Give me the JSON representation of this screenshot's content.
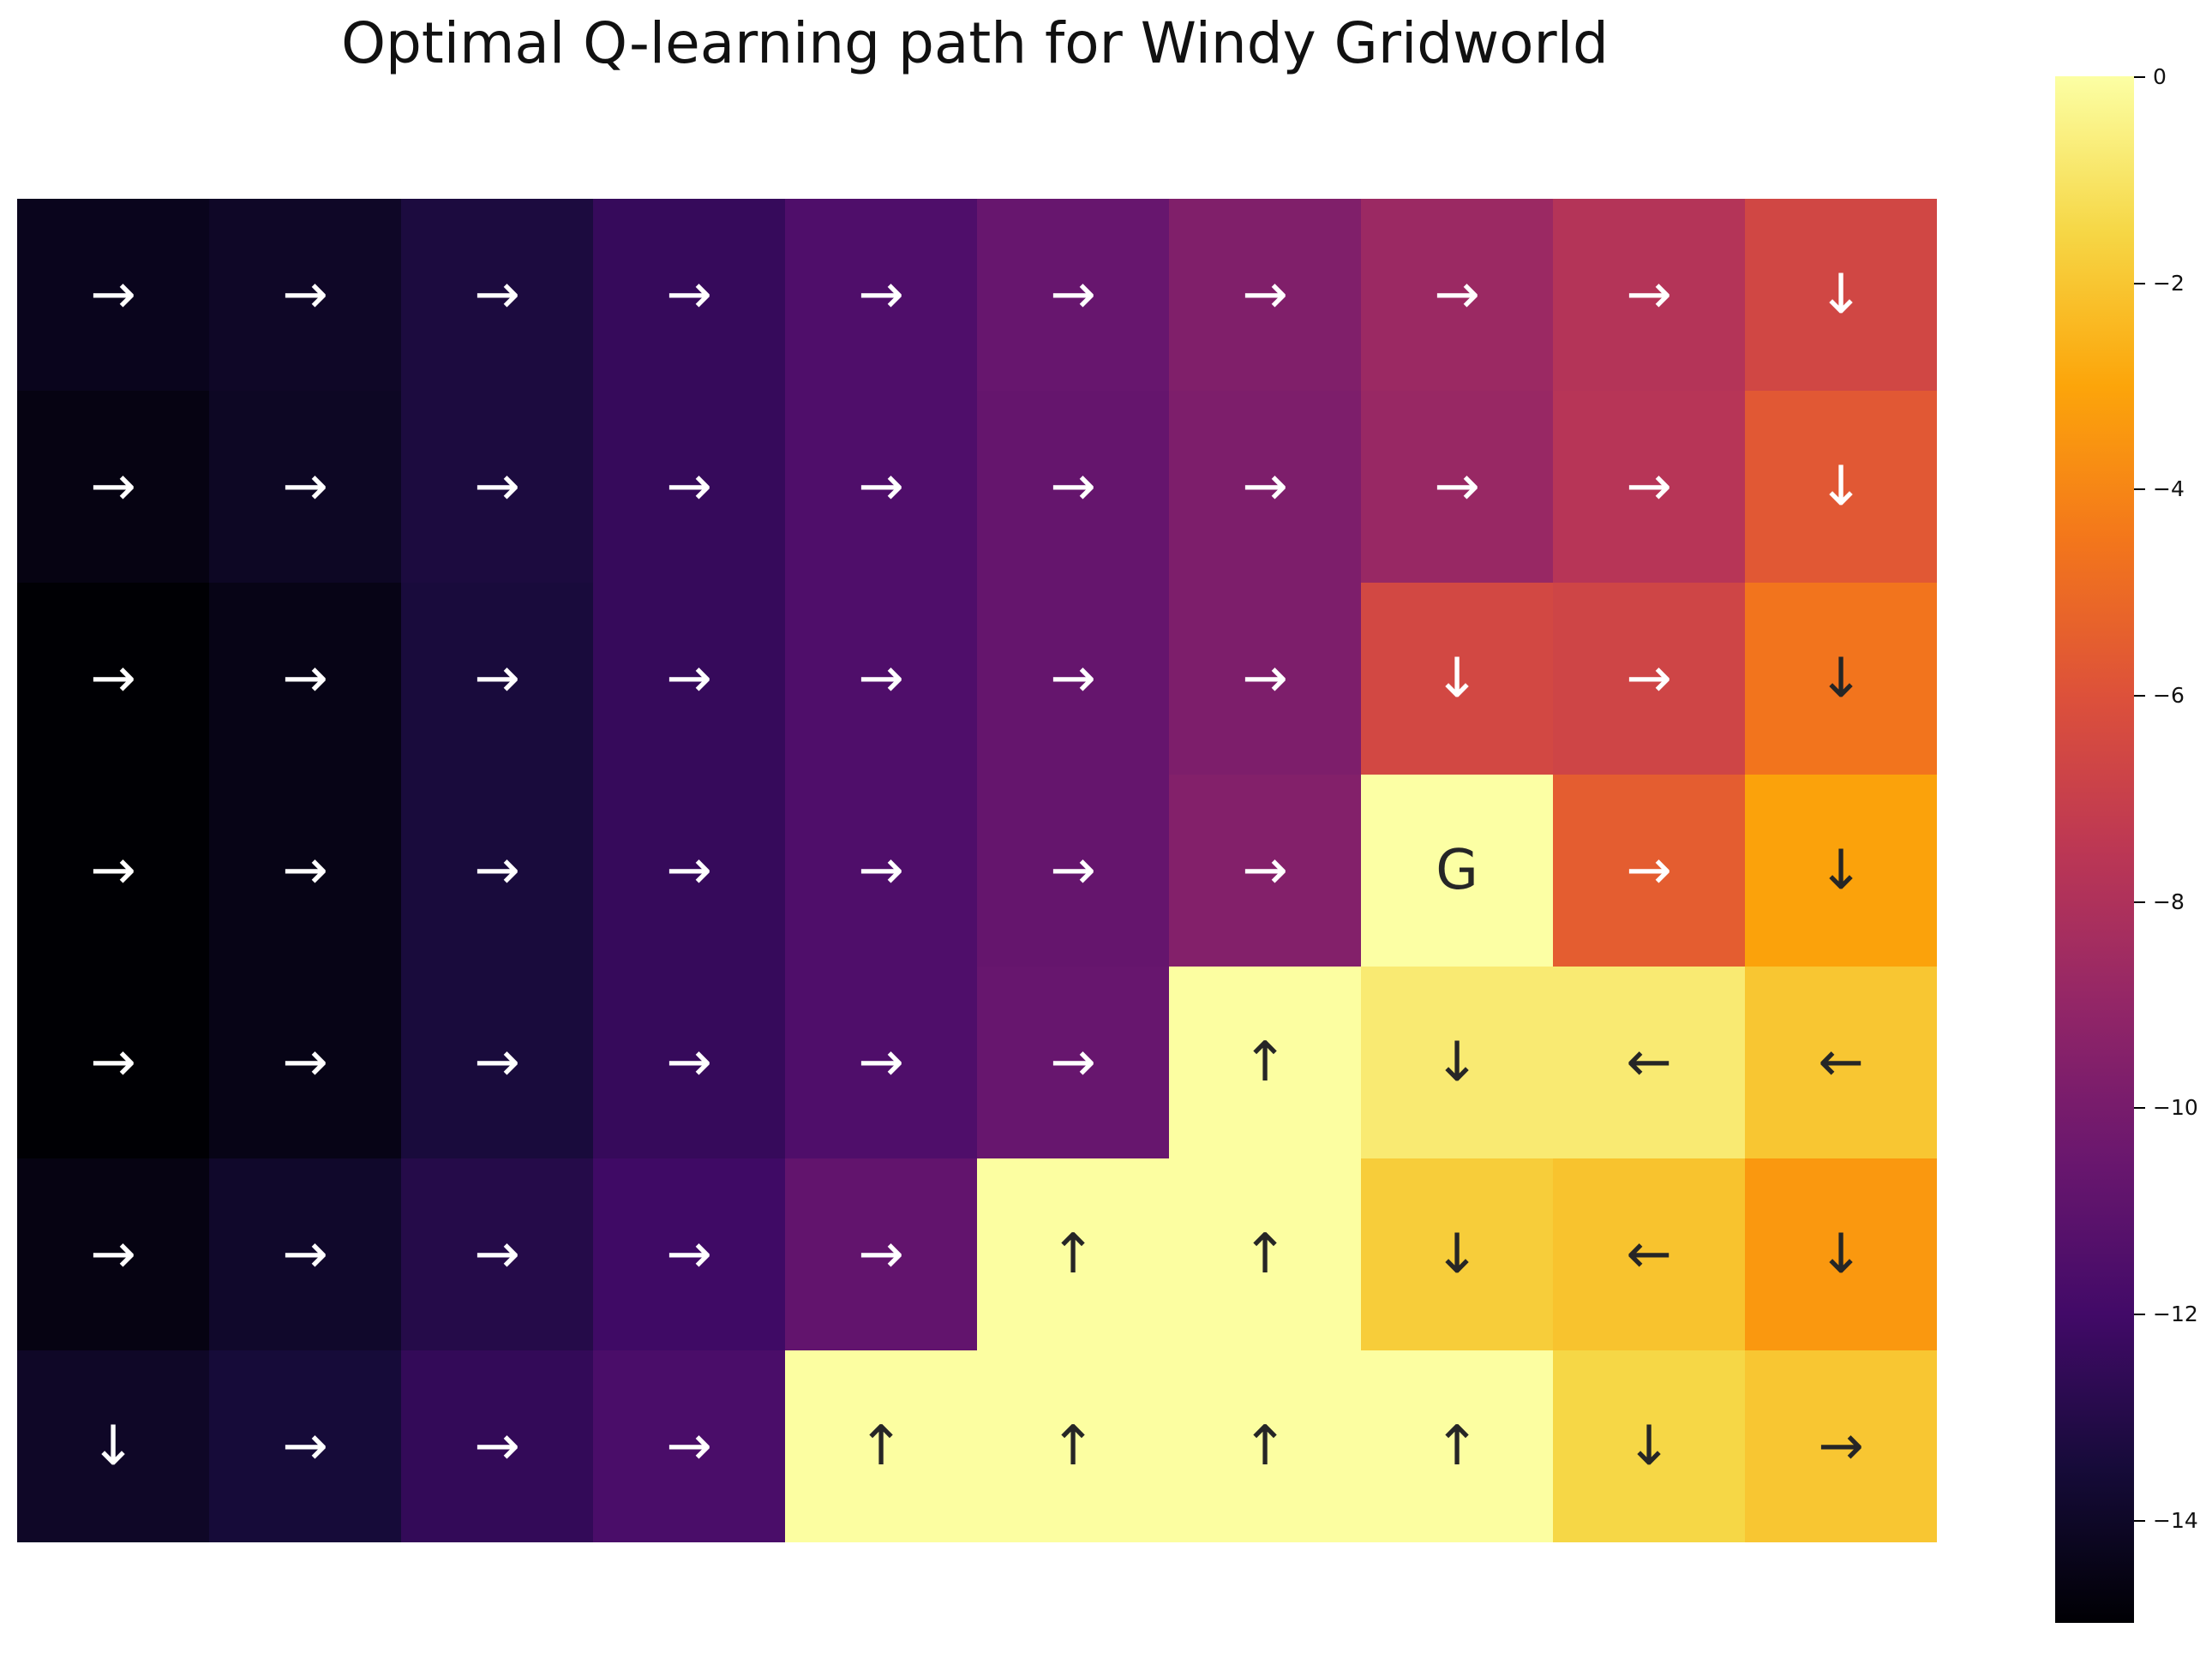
{
  "chart_data": {
    "type": "heatmap",
    "title": "Optimal Q-learning path for Windy Gridworld",
    "rows": 7,
    "cols": 10,
    "colormap": "inferno",
    "vmin": -15,
    "vmax": 0,
    "colorbar_ticks": [
      0,
      -2,
      -4,
      -6,
      -8,
      -10,
      -12,
      -14
    ],
    "colorbar_tick_labels": [
      "0",
      "−2",
      "−4",
      "−6",
      "−8",
      "−10",
      "−12",
      "−14"
    ],
    "values": [
      [
        -14.3,
        -14.0,
        -13.3,
        -12.4,
        -11.5,
        -10.6,
        -9.7,
        -8.7,
        -7.8,
        -6.6
      ],
      [
        -14.6,
        -14.1,
        -13.3,
        -12.4,
        -11.5,
        -10.7,
        -9.8,
        -8.8,
        -7.7,
        -5.7
      ],
      [
        -15.0,
        -14.5,
        -13.4,
        -12.4,
        -11.5,
        -10.7,
        -9.8,
        -6.5,
        -6.7,
        -4.6
      ],
      [
        -15.0,
        -14.5,
        -13.4,
        -12.4,
        -11.5,
        -10.7,
        -9.6,
        0.0,
        -5.5,
        -3.1
      ],
      [
        -15.0,
        -14.5,
        -13.4,
        -12.4,
        -11.5,
        -10.6,
        -0.05,
        -0.8,
        -0.8,
        -2.0
      ],
      [
        -14.6,
        -13.9,
        -13.0,
        -12.1,
        -10.8,
        -0.05,
        -0.05,
        -1.8,
        -2.1,
        -3.4
      ],
      [
        -14.0,
        -13.5,
        -12.5,
        -11.7,
        -0.05,
        -0.05,
        -0.05,
        -0.05,
        -1.5,
        -2.0
      ]
    ],
    "annotations": [
      [
        "→",
        "→",
        "→",
        "→",
        "→",
        "→",
        "→",
        "→",
        "→",
        "↓"
      ],
      [
        "→",
        "→",
        "→",
        "→",
        "→",
        "→",
        "→",
        "→",
        "→",
        "↓"
      ],
      [
        "→",
        "→",
        "→",
        "→",
        "→",
        "→",
        "→",
        "↓",
        "→",
        "↓"
      ],
      [
        "→",
        "→",
        "→",
        "→",
        "→",
        "→",
        "→",
        "G",
        "→",
        "↓"
      ],
      [
        "→",
        "→",
        "→",
        "→",
        "→",
        "→",
        "↑",
        "↓",
        "←",
        "←"
      ],
      [
        "→",
        "→",
        "→",
        "→",
        "→",
        "↑",
        "↑",
        "↓",
        "←",
        "↓"
      ],
      [
        "↓",
        "→",
        "→",
        "→",
        "↑",
        "↑",
        "↑",
        "↑",
        "↓",
        "→"
      ]
    ],
    "light_text_color": "#ffffff",
    "dark_text_color": "#262626"
  }
}
